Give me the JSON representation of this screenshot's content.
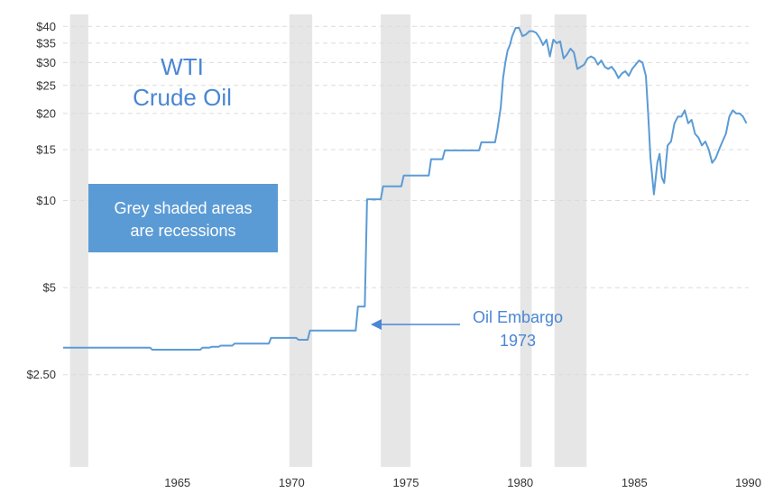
{
  "chart_data": {
    "type": "line",
    "title_lines": [
      "WTI",
      "Crude Oil"
    ],
    "xlabel": "",
    "ylabel": "",
    "y_scale": "log",
    "xlim": [
      1960,
      1990
    ],
    "ylim": [
      1.2,
      44
    ],
    "grid": true,
    "legend": "none",
    "y_ticks": [
      {
        "value": 40,
        "label": "$40"
      },
      {
        "value": 35,
        "label": "$35"
      },
      {
        "value": 30,
        "label": "$30"
      },
      {
        "value": 25,
        "label": "$25"
      },
      {
        "value": 20,
        "label": "$20"
      },
      {
        "value": 15,
        "label": "$15"
      },
      {
        "value": 10,
        "label": "$10"
      },
      {
        "value": 5,
        "label": "$5"
      },
      {
        "value": 2.5,
        "label": "$2.50"
      }
    ],
    "x_ticks": [
      {
        "value": 1965,
        "label": "1965"
      },
      {
        "value": 1970,
        "label": "1970"
      },
      {
        "value": 1975,
        "label": "1975"
      },
      {
        "value": 1980,
        "label": "1980"
      },
      {
        "value": 1985,
        "label": "1985"
      },
      {
        "value": 1990,
        "label": "1990"
      }
    ],
    "recessions": [
      [
        1960.3,
        1961.1
      ],
      [
        1969.9,
        1970.9
      ],
      [
        1973.9,
        1975.2
      ],
      [
        1980.0,
        1980.5
      ],
      [
        1981.5,
        1982.9
      ]
    ],
    "note_box": {
      "lines": [
        "Grey shaded areas",
        "are recessions"
      ]
    },
    "annotation": {
      "lines": [
        "Oil Embargo",
        "1973"
      ],
      "x": 1973.7,
      "y": 3.6
    },
    "series": [
      {
        "color": "#5b9bd5",
        "x": [
          1960.0,
          1963.8,
          1963.9,
          1966.0,
          1966.1,
          1966.4,
          1966.5,
          1966.8,
          1966.9,
          1967.4,
          1967.5,
          1969.0,
          1969.1,
          1970.2,
          1970.3,
          1970.7,
          1970.8,
          1972.8,
          1972.9,
          1973.2,
          1973.3,
          1973.9,
          1974.0,
          1974.8,
          1974.9,
          1976.0,
          1976.1,
          1976.6,
          1976.7,
          1977.6,
          1977.7,
          1978.2,
          1978.3,
          1978.9,
          1979.0,
          1979.15,
          1979.25,
          1979.35,
          1979.45,
          1979.55,
          1979.65,
          1979.8,
          1979.95,
          1980.1,
          1980.25,
          1980.4,
          1980.55,
          1980.7,
          1980.85,
          1981.0,
          1981.15,
          1981.3,
          1981.45,
          1981.6,
          1981.75,
          1981.9,
          1982.05,
          1982.2,
          1982.35,
          1982.5,
          1982.65,
          1982.8,
          1982.95,
          1983.1,
          1983.25,
          1983.4,
          1983.55,
          1983.7,
          1983.85,
          1984.0,
          1984.15,
          1984.3,
          1984.45,
          1984.6,
          1984.75,
          1984.9,
          1985.05,
          1985.2,
          1985.35,
          1985.5,
          1985.6,
          1985.7,
          1985.85,
          1986.0,
          1986.1,
          1986.2,
          1986.3,
          1986.45,
          1986.6,
          1986.75,
          1986.9,
          1987.05,
          1987.2,
          1987.35,
          1987.5,
          1987.65,
          1987.8,
          1987.95,
          1988.1,
          1988.25,
          1988.4,
          1988.55,
          1988.7,
          1988.85,
          1989.0,
          1989.15,
          1989.3,
          1989.45,
          1989.6,
          1989.75,
          1989.9
        ],
        "values": [
          3.1,
          3.1,
          3.05,
          3.05,
          3.1,
          3.1,
          3.12,
          3.12,
          3.15,
          3.15,
          3.2,
          3.2,
          3.35,
          3.35,
          3.3,
          3.3,
          3.55,
          3.55,
          4.3,
          4.3,
          10.1,
          10.1,
          11.2,
          11.2,
          12.2,
          12.2,
          13.9,
          13.9,
          14.9,
          14.9,
          14.9,
          14.9,
          15.9,
          15.9,
          17.5,
          21.0,
          26.5,
          30.0,
          33.0,
          34.5,
          37.0,
          39.5,
          39.5,
          37.0,
          37.5,
          38.5,
          38.5,
          38.0,
          36.5,
          34.5,
          36.0,
          31.5,
          36.0,
          35.0,
          35.5,
          31.0,
          32.0,
          33.5,
          32.5,
          28.5,
          29.0,
          29.5,
          31.0,
          31.5,
          31.0,
          29.5,
          30.5,
          29.0,
          28.5,
          29.0,
          28.0,
          26.5,
          27.5,
          28.0,
          27.0,
          28.5,
          29.5,
          30.5,
          30.0,
          27.0,
          20.0,
          14.0,
          10.5,
          13.5,
          14.5,
          12.0,
          11.5,
          15.5,
          16.0,
          18.5,
          19.5,
          19.5,
          20.5,
          18.5,
          19.0,
          17.0,
          16.5,
          15.5,
          16.0,
          15.0,
          13.5,
          14.0,
          15.0,
          16.0,
          17.0,
          19.5,
          20.5,
          20.0,
          20.0,
          19.5,
          18.5
        ]
      }
    ]
  }
}
